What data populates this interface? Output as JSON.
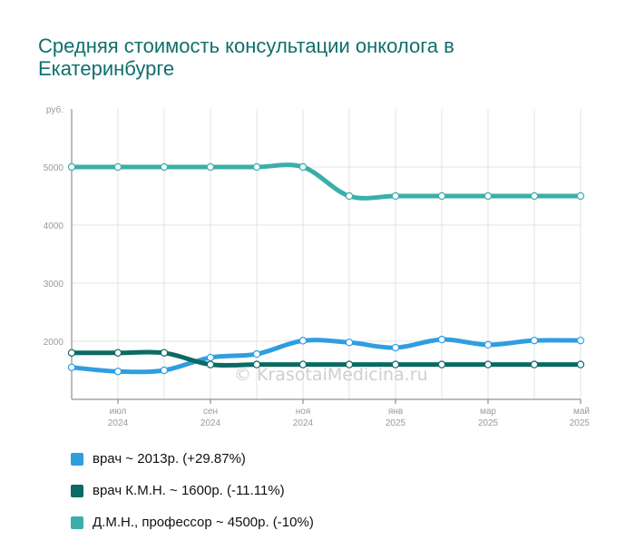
{
  "title": "Средняя стоимость консультации онколога в Екатеринбурге",
  "watermark": "© KrasotaiMedicina.ru",
  "chart_data": {
    "type": "line",
    "title": "Средняя стоимость консультации онколога в Екатеринбурге",
    "ylabel": "руб.",
    "xlabel": "",
    "ylim": [
      1000,
      6000
    ],
    "yticks": [
      "2000",
      "3000",
      "4000",
      "5000"
    ],
    "ytick_values": [
      2000,
      3000,
      4000,
      5000
    ],
    "x_points": 12,
    "x_tick_labels": [
      {
        "index": 1,
        "month": "июл",
        "year": "2024"
      },
      {
        "index": 3,
        "month": "сен",
        "year": "2024"
      },
      {
        "index": 5,
        "month": "ноя",
        "year": "2024"
      },
      {
        "index": 7,
        "month": "янв",
        "year": "2025"
      },
      {
        "index": 9,
        "month": "мар",
        "year": "2025"
      },
      {
        "index": 11,
        "month": "май",
        "year": "2025"
      }
    ],
    "grid": true,
    "legend_position": "bottom",
    "series": [
      {
        "name": "врач ~ 2013р. (+29.87%)",
        "color": "#2e9ee0",
        "values": [
          1550,
          1480,
          1500,
          1720,
          1780,
          2010,
          1980,
          1890,
          2030,
          1940,
          2013,
          2013
        ]
      },
      {
        "name": "врач К.М.Н. ~ 1600р. (-11.11%)",
        "color": "#0b6a63",
        "values": [
          1800,
          1800,
          1800,
          1600,
          1600,
          1600,
          1600,
          1600,
          1600,
          1600,
          1600,
          1600
        ]
      },
      {
        "name": "Д.М.Н., профессор ~ 4500р. (-10%)",
        "color": "#3aafa9",
        "values": [
          5000,
          5000,
          5000,
          5000,
          5000,
          5000,
          4500,
          4500,
          4500,
          4500,
          4500,
          4500
        ]
      }
    ]
  }
}
